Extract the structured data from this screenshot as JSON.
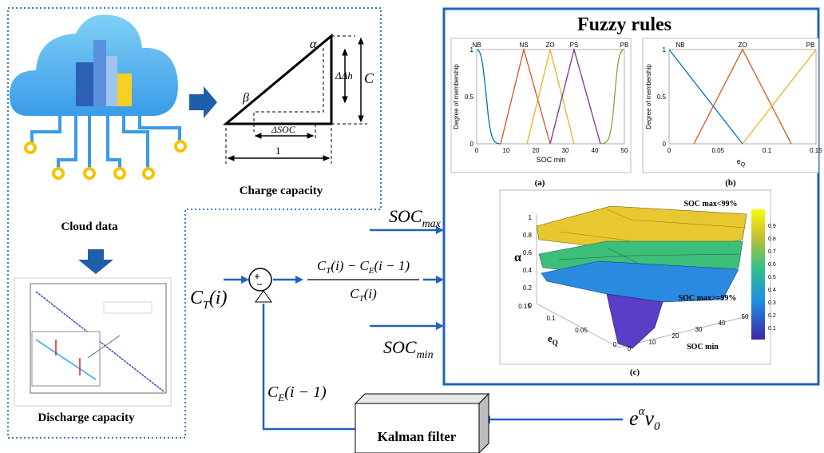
{
  "left_panel": {
    "cloud_label": "Cloud data",
    "charge_label": "Charge capacity",
    "discharge_label": "Discharge capacity",
    "triangle": {
      "alpha": "α",
      "beta": "β",
      "delta_h": "ΔΔh",
      "c": "C",
      "delta_soc": "ΔSOC",
      "one": "1"
    }
  },
  "flow": {
    "soc_max": {
      "base": "SOC",
      "sub": "max"
    },
    "soc_min": {
      "base": "SOC",
      "sub": "min"
    },
    "input": {
      "base": "C",
      "sub": "T",
      "arg": "(i)"
    },
    "fraction": {
      "numerator": [
        "C",
        "T",
        "(i) − C",
        "E",
        "(i − 1)"
      ],
      "denominator": [
        "C",
        "T",
        "(i)"
      ]
    },
    "feedback": [
      "C",
      "E",
      "(i − 1)"
    ],
    "kalman": "Kalman filter",
    "noise": [
      "e",
      "α",
      "v",
      "0"
    ]
  },
  "fuzzy": {
    "title": "Fuzzy rules",
    "plot_a": {
      "labels": [
        "NB",
        "NS",
        "ZO",
        "PS",
        "PB"
      ],
      "xticks": [
        "0",
        "10",
        "20",
        "30",
        "40",
        "50"
      ],
      "yticks": [
        "0",
        "0.5",
        "1"
      ],
      "xlabel": "SOC min",
      "ylabel": "Degree of membership",
      "caption": "(a)"
    },
    "plot_b": {
      "labels": [
        "NB",
        "ZO",
        "PB"
      ],
      "xticks": [
        "0",
        "0.05",
        "0.1",
        "0.15"
      ],
      "yticks": [
        "0",
        "0.5",
        "1"
      ],
      "xlabel": {
        "base": "e",
        "sub": "Q"
      },
      "ylabel": "Degree of membership",
      "caption": "(b)"
    },
    "plot_c": {
      "z_label": "α",
      "x_label": {
        "base": "e",
        "sub": "Q"
      },
      "y_label": "SOC min",
      "zticks": [
        "1",
        "0.8",
        "0.6",
        "0.4",
        "0.2",
        "0"
      ],
      "eq_ticks": [
        "0.15",
        "0.1",
        "0.05",
        "0"
      ],
      "soc_ticks": [
        "0",
        "10",
        "20",
        "30",
        "40",
        "50"
      ],
      "colorbar_ticks": [
        "0.9",
        "0.8",
        "0.7",
        "0.6",
        "0.5",
        "0.4",
        "0.3",
        "0.2",
        "0.1"
      ],
      "annotations": [
        "SOC max<99%",
        "SOC max>=99%"
      ],
      "caption": "(c)"
    }
  }
}
